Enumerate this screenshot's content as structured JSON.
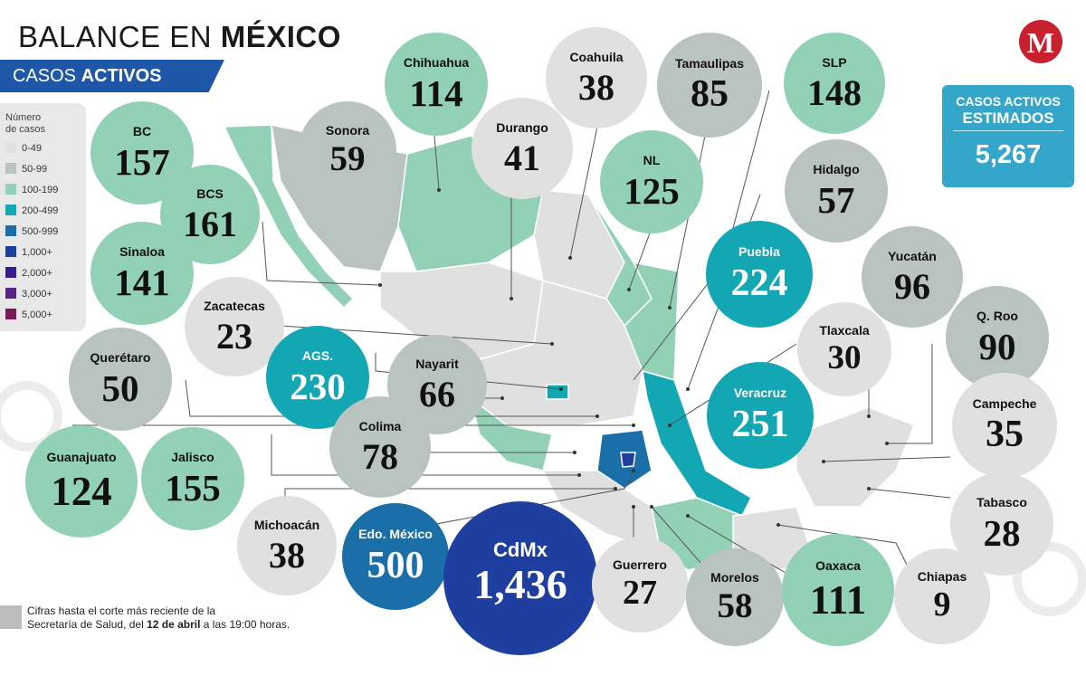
{
  "header": {
    "title_light": "BALANCE EN ",
    "title_bold": "MÉXICO",
    "subtitle_light": "CASOS ",
    "subtitle_bold": "ACTIVOS"
  },
  "logo": {
    "letter": "M"
  },
  "legend": {
    "title": "Número\nde casos",
    "items": [
      {
        "label": "0-49",
        "color": "#e0e0e0"
      },
      {
        "label": "50-99",
        "color": "#b9c3c0"
      },
      {
        "label": "100-199",
        "color": "#93d1b6"
      },
      {
        "label": "200-499",
        "color": "#13a6b3"
      },
      {
        "label": "500-999",
        "color": "#1b6fa8"
      },
      {
        "label": "1,000+",
        "color": "#1f3fa0"
      },
      {
        "label": "2,000+",
        "color": "#3a1f8c"
      },
      {
        "label": "3,000+",
        "color": "#5b2389"
      },
      {
        "label": "5,000+",
        "color": "#7a1a59"
      }
    ]
  },
  "estimated": {
    "line1": "CASOS ACTIVOS",
    "line2": "ESTIMADOS",
    "value": "5,267"
  },
  "states": [
    {
      "name": "BC",
      "value": "157",
      "color": "#93d1b6",
      "text_color": "#111"
    },
    {
      "name": "Sonora",
      "value": "59",
      "color": "#b9c3c0",
      "text_color": "#111"
    },
    {
      "name": "Chihuahua",
      "value": "114",
      "color": "#93d1b6",
      "text_color": "#111"
    },
    {
      "name": "Coahuila",
      "value": "38",
      "color": "#e0e0e0",
      "text_color": "#111"
    },
    {
      "name": "Tamaulipas",
      "value": "85",
      "color": "#b9c3c0",
      "text_color": "#111"
    },
    {
      "name": "SLP",
      "value": "148",
      "color": "#93d1b6",
      "text_color": "#111"
    },
    {
      "name": "Durango",
      "value": "41",
      "color": "#e0e0e0",
      "text_color": "#111"
    },
    {
      "name": "BCS",
      "value": "161",
      "color": "#93d1b6",
      "text_color": "#111"
    },
    {
      "name": "NL",
      "value": "125",
      "color": "#93d1b6",
      "text_color": "#111"
    },
    {
      "name": "Hidalgo",
      "value": "57",
      "color": "#b9c3c0",
      "text_color": "#111"
    },
    {
      "name": "Sinaloa",
      "value": "141",
      "color": "#93d1b6",
      "text_color": "#111"
    },
    {
      "name": "Zacatecas",
      "value": "23",
      "color": "#e0e0e0",
      "text_color": "#111"
    },
    {
      "name": "Puebla",
      "value": "224",
      "color": "#13a6b3",
      "text_color": "#ffffff"
    },
    {
      "name": "Yucatán",
      "value": "96",
      "color": "#b9c3c0",
      "text_color": "#111"
    },
    {
      "name": "Q. Roo",
      "value": "90",
      "color": "#b9c3c0",
      "text_color": "#111"
    },
    {
      "name": "Tlaxcala",
      "value": "30",
      "color": "#e0e0e0",
      "text_color": "#111"
    },
    {
      "name": "Querétaro",
      "value": "50",
      "color": "#b9c3c0",
      "text_color": "#111"
    },
    {
      "name": "AGS.",
      "value": "230",
      "color": "#13a6b3",
      "text_color": "#ffffff"
    },
    {
      "name": "Nayarit",
      "value": "66",
      "color": "#b9c3c0",
      "text_color": "#111"
    },
    {
      "name": "Veracruz",
      "value": "251",
      "color": "#13a6b3",
      "text_color": "#ffffff"
    },
    {
      "name": "Campeche",
      "value": "35",
      "color": "#e0e0e0",
      "text_color": "#111"
    },
    {
      "name": "Colima",
      "value": "78",
      "color": "#b9c3c0",
      "text_color": "#111"
    },
    {
      "name": "Guanajuato",
      "value": "124",
      "color": "#93d1b6",
      "text_color": "#111"
    },
    {
      "name": "Jalisco",
      "value": "155",
      "color": "#93d1b6",
      "text_color": "#111"
    },
    {
      "name": "Tabasco",
      "value": "28",
      "color": "#e0e0e0",
      "text_color": "#111"
    },
    {
      "name": "Michoacán",
      "value": "38",
      "color": "#e0e0e0",
      "text_color": "#111"
    },
    {
      "name": "Edo. México",
      "value": "500",
      "color": "#1b6fa8",
      "text_color": "#ffffff"
    },
    {
      "name": "CdMx",
      "value": "1,436",
      "color": "#1f3fa0",
      "text_color": "#ffffff"
    },
    {
      "name": "Guerrero",
      "value": "27",
      "color": "#e0e0e0",
      "text_color": "#111"
    },
    {
      "name": "Morelos",
      "value": "58",
      "color": "#b9c3c0",
      "text_color": "#111"
    },
    {
      "name": "Oaxaca",
      "value": "111",
      "color": "#93d1b6",
      "text_color": "#111"
    },
    {
      "name": "Chiapas",
      "value": "9",
      "color": "#e0e0e0",
      "text_color": "#111"
    }
  ],
  "note": {
    "line1": "Cifras hasta el corte más reciente de la",
    "line2_start": "Secretaría de Salud, del ",
    "line2_bold": "12 de abril",
    "line2_end": " a las 19:00 horas."
  }
}
